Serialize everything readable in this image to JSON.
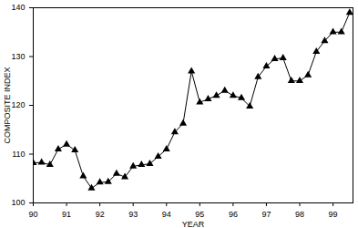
{
  "chart_data": {
    "type": "line",
    "x_label": "YEAR",
    "y_label": "COMPOSITE INDEX",
    "x": [
      90,
      90.25,
      90.5,
      90.75,
      91,
      91.25,
      91.5,
      91.75,
      92,
      92.25,
      92.5,
      92.75,
      93,
      93.25,
      93.5,
      93.75,
      94,
      94.25,
      94.5,
      94.75,
      95,
      95.25,
      95.5,
      95.75,
      96,
      96.25,
      96.5,
      96.75,
      97,
      97.25,
      97.5,
      97.75,
      98,
      98.25,
      98.5,
      98.75,
      99,
      99.25,
      99.5
    ],
    "values": [
      108.2,
      108.3,
      107.8,
      111,
      112,
      110.8,
      105.5,
      103,
      104.2,
      104.3,
      106,
      105.3,
      107.5,
      107.8,
      108,
      109.5,
      111,
      114.5,
      116.3,
      127,
      120.6,
      121.3,
      122,
      123,
      122,
      121.5,
      119.8,
      125.8,
      128,
      129.5,
      129.7,
      125,
      125,
      126.2,
      131,
      133.2,
      135,
      135,
      139
    ],
    "color": "#000000",
    "marker": "triangle",
    "xlim": [
      90,
      99.6
    ],
    "xticks": [
      90,
      91,
      92,
      93,
      94,
      95,
      96,
      97,
      98,
      99
    ],
    "ylim": [
      100,
      140
    ],
    "yticks": [
      100,
      110,
      120,
      130,
      140
    ],
    "grid": false
  }
}
